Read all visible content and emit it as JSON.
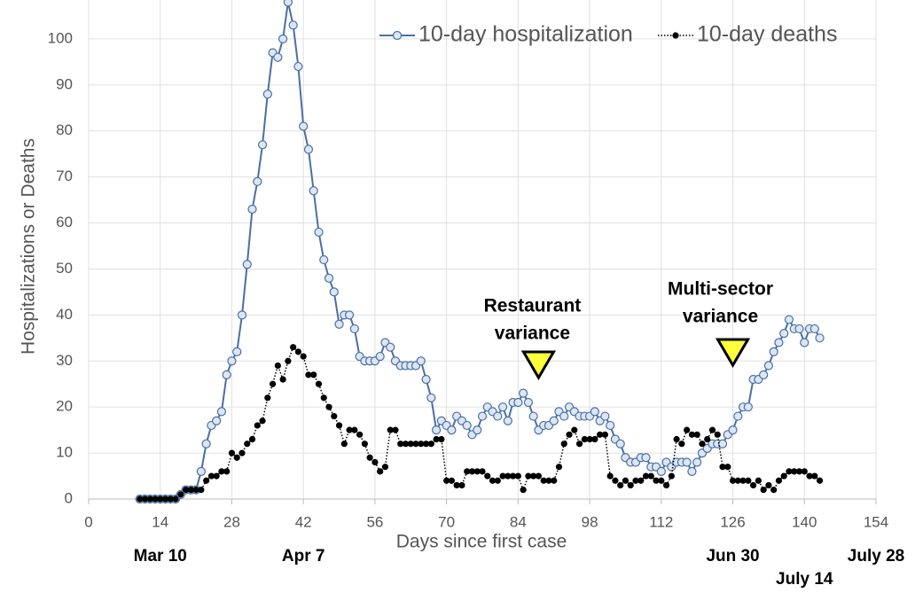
{
  "chart_data": {
    "type": "line",
    "xlabel": "Days since first case",
    "ylabel": "Hospitalizations or Deaths",
    "xlim": [
      0,
      154
    ],
    "xticks": [
      0,
      14,
      28,
      42,
      56,
      70,
      84,
      98,
      112,
      126,
      140,
      154
    ],
    "ylim": [
      0,
      110
    ],
    "yticks": [
      0,
      10,
      20,
      30,
      40,
      50,
      60,
      70,
      80,
      90,
      100
    ],
    "grid": true,
    "x": [
      10,
      11,
      12,
      13,
      14,
      15,
      16,
      17,
      18,
      19,
      20,
      21,
      22,
      23,
      24,
      25,
      26,
      27,
      28,
      29,
      30,
      31,
      32,
      33,
      34,
      35,
      36,
      37,
      38,
      39,
      40,
      41,
      42,
      43,
      44,
      45,
      46,
      47,
      48,
      49,
      50,
      51,
      52,
      53,
      54,
      55,
      56,
      57,
      58,
      59,
      60,
      61,
      62,
      63,
      64,
      65,
      66,
      67,
      68,
      69,
      70,
      71,
      72,
      73,
      74,
      75,
      76,
      77,
      78,
      79,
      80,
      81,
      82,
      83,
      84,
      85,
      86,
      87,
      88,
      89,
      90,
      91,
      92,
      93,
      94,
      95,
      96,
      97,
      98,
      99,
      100,
      101,
      102,
      103,
      104,
      105,
      106,
      107,
      108,
      109,
      110,
      111,
      112,
      113,
      114,
      115,
      116,
      117,
      118,
      119,
      120,
      121,
      122,
      123,
      124,
      125,
      126,
      127,
      128,
      129,
      130,
      131,
      132,
      133,
      134,
      135,
      136,
      137,
      138,
      139,
      140,
      141,
      142,
      143
    ],
    "series": [
      {
        "name": "10-day hospitalization",
        "color": "#4a6fa5",
        "marker_fill": "#dce6f5",
        "values": [
          0,
          0,
          0,
          0,
          0,
          0,
          0,
          0,
          1,
          2,
          2,
          2,
          6,
          12,
          16,
          17,
          19,
          27,
          30,
          32,
          40,
          51,
          63,
          69,
          77,
          88,
          97,
          96,
          100,
          108,
          103,
          94,
          81,
          76,
          67,
          58,
          52,
          48,
          45,
          38,
          40,
          40,
          37,
          31,
          30,
          30,
          30,
          31,
          34,
          33,
          30,
          29,
          29,
          29,
          29,
          30,
          26,
          22,
          15,
          17,
          16,
          15,
          18,
          17,
          16,
          14,
          15,
          18,
          20,
          19,
          18,
          20,
          17,
          21,
          21,
          23,
          21,
          18,
          15,
          16,
          16,
          17,
          19,
          18,
          20,
          19,
          18,
          18,
          18,
          19,
          17,
          18,
          16,
          13,
          12,
          9,
          8,
          8,
          9,
          9,
          7,
          7,
          6,
          8,
          7,
          8,
          8,
          8,
          6,
          8,
          10,
          11,
          12,
          12,
          12,
          14,
          15,
          18,
          20,
          20,
          26,
          26,
          27,
          29,
          32,
          34,
          36,
          39,
          37,
          37,
          34,
          37,
          37,
          35
        ]
      },
      {
        "name": "10-day deaths",
        "color": "#000000",
        "dotted": true,
        "values": [
          0,
          0,
          0,
          0,
          0,
          0,
          0,
          0,
          1,
          2,
          2,
          2,
          2,
          4,
          5,
          5,
          6,
          6,
          10,
          9,
          10,
          12,
          13,
          16,
          17,
          22,
          25,
          29,
          26,
          30,
          33,
          32,
          31,
          27,
          27,
          25,
          22,
          20,
          18,
          16,
          12,
          15,
          15,
          14,
          12,
          9,
          8,
          6,
          7,
          15,
          15,
          12,
          12,
          12,
          12,
          12,
          12,
          12,
          13,
          13,
          4,
          4,
          3,
          3,
          6,
          6,
          6,
          6,
          5,
          4,
          4,
          5,
          5,
          5,
          5,
          2,
          5,
          5,
          5,
          4,
          4,
          4,
          7,
          12,
          14,
          15,
          12,
          13,
          13,
          13,
          14,
          14,
          5,
          4,
          3,
          4,
          3,
          4,
          4,
          5,
          5,
          4,
          4,
          3,
          5,
          13,
          12,
          15,
          14,
          14,
          12,
          13,
          15,
          14,
          7,
          7,
          4,
          4,
          4,
          4,
          3,
          4,
          2,
          3,
          2,
          4,
          5,
          6,
          6,
          6,
          6,
          5,
          5,
          4
        ]
      }
    ],
    "date_labels": [
      {
        "x": 14,
        "label": "Mar 10"
      },
      {
        "x": 42,
        "label": "Apr 7"
      },
      {
        "x": 126,
        "label": "Jun 30"
      },
      {
        "x": 154,
        "label": "July 28"
      },
      {
        "x": 140,
        "label": "July 14"
      }
    ],
    "annotations": [
      {
        "x": 88,
        "lines": [
          "Restaurant",
          "variance"
        ]
      },
      {
        "x": 126,
        "lines": [
          "Multi-sector",
          "variance"
        ]
      }
    ]
  }
}
